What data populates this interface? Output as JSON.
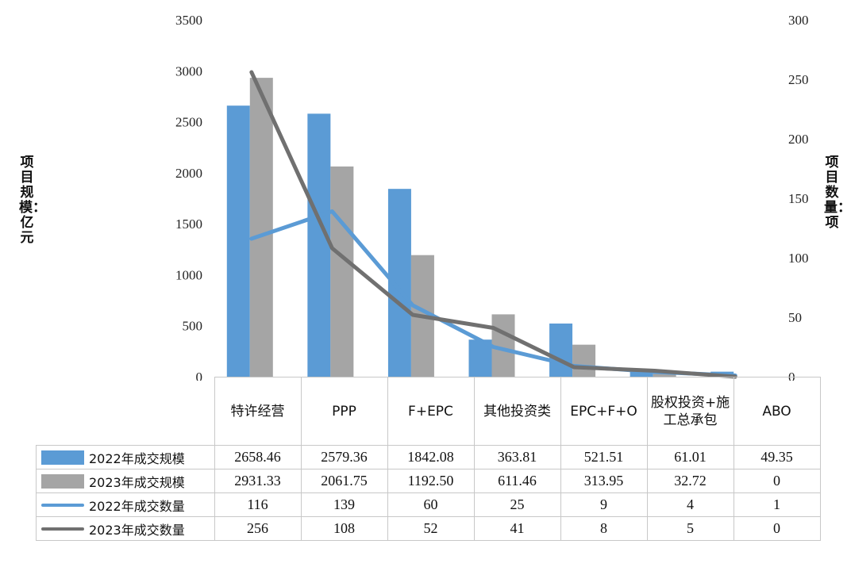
{
  "chart_data": {
    "type": "bar",
    "categories": [
      "特许经营",
      "PPP",
      "F+EPC",
      "其他投资类",
      "EPC+F+O",
      "股权投资+施工总承包",
      "ABO"
    ],
    "series": [
      {
        "name": "2022年成交规模",
        "type": "bar",
        "axis": "left",
        "color": "#5b9bd5",
        "values": [
          2658.46,
          2579.36,
          1842.08,
          363.81,
          521.51,
          61.01,
          49.35
        ]
      },
      {
        "name": "2023年成交规模",
        "type": "bar",
        "axis": "left",
        "color": "#a5a5a5",
        "values": [
          2931.33,
          2061.75,
          1192.5,
          611.46,
          313.95,
          32.72,
          0
        ]
      },
      {
        "name": "2022年成交数量",
        "type": "line",
        "axis": "right",
        "color": "#5b9bd5",
        "values": [
          116,
          139,
          60,
          25,
          9,
          4,
          1
        ]
      },
      {
        "name": "2023年成交数量",
        "type": "line",
        "axis": "right",
        "color": "#707070",
        "values": [
          256,
          108,
          52,
          41,
          8,
          5,
          0
        ]
      }
    ],
    "ylabel": "项目规模：亿元",
    "y2label": "项目数量：项",
    "ylim": [
      0,
      3500
    ],
    "y2lim": [
      0,
      300
    ],
    "yticks": [
      "0",
      "500",
      "1000",
      "1500",
      "2000",
      "2500",
      "3000",
      "3500"
    ],
    "y2ticks": [
      "0",
      "50",
      "100",
      "150",
      "200",
      "250",
      "300"
    ],
    "table_values": [
      [
        "2658.46",
        "2579.36",
        "1842.08",
        "363.81",
        "521.51",
        "61.01",
        "49.35"
      ],
      [
        "2931.33",
        "2061.75",
        "1192.50",
        "611.46",
        "313.95",
        "32.72",
        "0"
      ],
      [
        "116",
        "139",
        "60",
        "25",
        "9",
        "4",
        "1"
      ],
      [
        "256",
        "108",
        "52",
        "41",
        "8",
        "5",
        "0"
      ]
    ],
    "grid": false,
    "legend": "data-table"
  }
}
